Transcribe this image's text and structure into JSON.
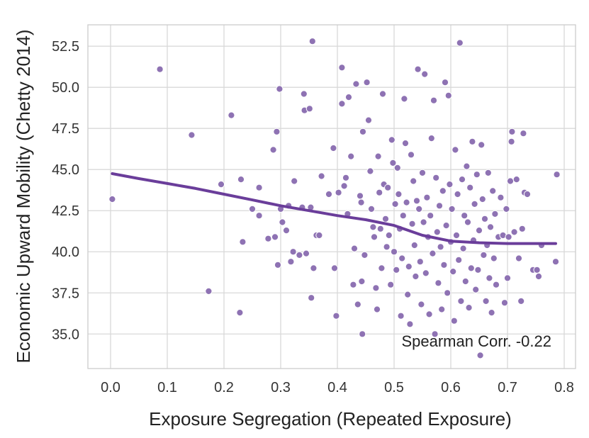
{
  "chart_data": {
    "type": "scatter",
    "title": "",
    "xlabel": "Exposure Segregation (Repeated Exposure)",
    "ylabel": "Economic Upward Mobility (Chetty 2014)",
    "xlim": [
      -0.04,
      0.82
    ],
    "ylim": [
      32.9,
      53.8
    ],
    "xticks": [
      "0.0",
      "0.1",
      "0.2",
      "0.3",
      "0.4",
      "0.5",
      "0.6",
      "0.7",
      "0.8"
    ],
    "xtick_values": [
      0.0,
      0.1,
      0.2,
      0.3,
      0.4,
      0.5,
      0.6,
      0.7,
      0.8
    ],
    "yticks": [
      "35.0",
      "37.5",
      "40.0",
      "42.5",
      "45.0",
      "47.5",
      "50.0",
      "52.5"
    ],
    "ytick_values": [
      35.0,
      37.5,
      40.0,
      42.5,
      45.0,
      47.5,
      50.0,
      52.5
    ],
    "grid": true,
    "annotation": "Spearman Corr. -0.22",
    "point_color": "#8e72b3",
    "line_color": "#6a3d9a",
    "series": [
      {
        "name": "counties",
        "points": [
          [
            0.003,
            43.2
          ],
          [
            0.087,
            51.1
          ],
          [
            0.143,
            47.1
          ],
          [
            0.173,
            37.6
          ],
          [
            0.195,
            44.1
          ],
          [
            0.213,
            48.3
          ],
          [
            0.228,
            36.3
          ],
          [
            0.23,
            44.4
          ],
          [
            0.233,
            40.6
          ],
          [
            0.25,
            42.6
          ],
          [
            0.262,
            43.9
          ],
          [
            0.262,
            42.2
          ],
          [
            0.278,
            40.8
          ],
          [
            0.287,
            46.2
          ],
          [
            0.29,
            40.9
          ],
          [
            0.293,
            47.3
          ],
          [
            0.295,
            39.2
          ],
          [
            0.298,
            49.9
          ],
          [
            0.3,
            42.6
          ],
          [
            0.303,
            41.8
          ],
          [
            0.31,
            41.3
          ],
          [
            0.314,
            42.8
          ],
          [
            0.318,
            39.4
          ],
          [
            0.322,
            40.0
          ],
          [
            0.324,
            44.3
          ],
          [
            0.333,
            39.8
          ],
          [
            0.338,
            42.7
          ],
          [
            0.341,
            49.6
          ],
          [
            0.342,
            48.6
          ],
          [
            0.345,
            39.9
          ],
          [
            0.351,
            48.7
          ],
          [
            0.353,
            42.7
          ],
          [
            0.354,
            37.2
          ],
          [
            0.356,
            52.8
          ],
          [
            0.358,
            39.0
          ],
          [
            0.363,
            41.0
          ],
          [
            0.368,
            41.0
          ],
          [
            0.372,
            44.6
          ],
          [
            0.385,
            43.5
          ],
          [
            0.393,
            46.3
          ],
          [
            0.395,
            39.0
          ],
          [
            0.398,
            36.1
          ],
          [
            0.402,
            43.6
          ],
          [
            0.408,
            51.2
          ],
          [
            0.408,
            49.0
          ],
          [
            0.412,
            44.0
          ],
          [
            0.415,
            44.5
          ],
          [
            0.418,
            42.3
          ],
          [
            0.42,
            49.4
          ],
          [
            0.424,
            45.8
          ],
          [
            0.428,
            38.0
          ],
          [
            0.43,
            40.2
          ],
          [
            0.433,
            50.2
          ],
          [
            0.436,
            36.8
          ],
          [
            0.44,
            43.4
          ],
          [
            0.442,
            43.0
          ],
          [
            0.443,
            38.2
          ],
          [
            0.444,
            35.0
          ],
          [
            0.445,
            47.3
          ],
          [
            0.448,
            39.8
          ],
          [
            0.452,
            50.3
          ],
          [
            0.455,
            48.0
          ],
          [
            0.458,
            44.9
          ],
          [
            0.46,
            42.6
          ],
          [
            0.463,
            41.5
          ],
          [
            0.465,
            40.9
          ],
          [
            0.468,
            37.8
          ],
          [
            0.47,
            36.5
          ],
          [
            0.472,
            45.8
          ],
          [
            0.474,
            43.6
          ],
          [
            0.476,
            41.4
          ],
          [
            0.478,
            39.0
          ],
          [
            0.48,
            49.6
          ],
          [
            0.482,
            44.1
          ],
          [
            0.485,
            42.0
          ],
          [
            0.487,
            40.3
          ],
          [
            0.489,
            43.9
          ],
          [
            0.491,
            41.0
          ],
          [
            0.494,
            38.0
          ],
          [
            0.496,
            46.8
          ],
          [
            0.498,
            45.4
          ],
          [
            0.5,
            40.0
          ],
          [
            0.502,
            42.9
          ],
          [
            0.504,
            38.9
          ],
          [
            0.506,
            45.1
          ],
          [
            0.508,
            43.5
          ],
          [
            0.51,
            41.4
          ],
          [
            0.512,
            36.1
          ],
          [
            0.514,
            39.6
          ],
          [
            0.516,
            42.2
          ],
          [
            0.518,
            49.3
          ],
          [
            0.52,
            46.6
          ],
          [
            0.522,
            43.0
          ],
          [
            0.524,
            37.4
          ],
          [
            0.526,
            39.1
          ],
          [
            0.528,
            35.6
          ],
          [
            0.53,
            45.9
          ],
          [
            0.532,
            41.7
          ],
          [
            0.534,
            44.3
          ],
          [
            0.536,
            40.4
          ],
          [
            0.538,
            38.5
          ],
          [
            0.54,
            43.1
          ],
          [
            0.542,
            51.1
          ],
          [
            0.544,
            42.6
          ],
          [
            0.546,
            39.4
          ],
          [
            0.548,
            36.8
          ],
          [
            0.55,
            44.8
          ],
          [
            0.552,
            41.8
          ],
          [
            0.554,
            50.8
          ],
          [
            0.556,
            38.7
          ],
          [
            0.558,
            43.3
          ],
          [
            0.56,
            40.9
          ],
          [
            0.562,
            36.2
          ],
          [
            0.564,
            42.2
          ],
          [
            0.566,
            46.9
          ],
          [
            0.568,
            39.9
          ],
          [
            0.57,
            49.2
          ],
          [
            0.572,
            35.0
          ],
          [
            0.574,
            44.5
          ],
          [
            0.576,
            41.2
          ],
          [
            0.578,
            38.1
          ],
          [
            0.58,
            42.8
          ],
          [
            0.582,
            40.3
          ],
          [
            0.584,
            36.5
          ],
          [
            0.586,
            43.7
          ],
          [
            0.588,
            39.2
          ],
          [
            0.59,
            50.3
          ],
          [
            0.592,
            41.6
          ],
          [
            0.594,
            37.5
          ],
          [
            0.596,
            49.5
          ],
          [
            0.598,
            44.1
          ],
          [
            0.6,
            40.6
          ],
          [
            0.602,
            42.6
          ],
          [
            0.604,
            38.8
          ],
          [
            0.606,
            35.8
          ],
          [
            0.608,
            46.2
          ],
          [
            0.61,
            41.0
          ],
          [
            0.612,
            43.5
          ],
          [
            0.614,
            39.5
          ],
          [
            0.616,
            52.7
          ],
          [
            0.618,
            37.0
          ],
          [
            0.62,
            44.4
          ],
          [
            0.622,
            40.2
          ],
          [
            0.624,
            42.2
          ],
          [
            0.626,
            38.2
          ],
          [
            0.628,
            45.2
          ],
          [
            0.63,
            41.8
          ],
          [
            0.632,
            36.6
          ],
          [
            0.634,
            43.9
          ],
          [
            0.636,
            39.0
          ],
          [
            0.638,
            46.7
          ],
          [
            0.64,
            40.7
          ],
          [
            0.642,
            42.9
          ],
          [
            0.644,
            37.7
          ],
          [
            0.646,
            44.7
          ],
          [
            0.648,
            38.9
          ],
          [
            0.65,
            41.3
          ],
          [
            0.652,
            33.7
          ],
          [
            0.654,
            46.5
          ],
          [
            0.656,
            43.2
          ],
          [
            0.658,
            39.8
          ],
          [
            0.66,
            42.0
          ],
          [
            0.662,
            37.0
          ],
          [
            0.664,
            40.4
          ],
          [
            0.666,
            44.8
          ],
          [
            0.668,
            38.4
          ],
          [
            0.67,
            41.5
          ],
          [
            0.672,
            36.3
          ],
          [
            0.674,
            43.7
          ],
          [
            0.676,
            39.6
          ],
          [
            0.678,
            42.3
          ],
          [
            0.68,
            38.0
          ],
          [
            0.684,
            40.9
          ],
          [
            0.688,
            43.3
          ],
          [
            0.692,
            41.0
          ],
          [
            0.695,
            36.9
          ],
          [
            0.698,
            42.6
          ],
          [
            0.7,
            38.4
          ],
          [
            0.702,
            40.9
          ],
          [
            0.705,
            44.3
          ],
          [
            0.707,
            46.7
          ],
          [
            0.708,
            47.3
          ],
          [
            0.712,
            41.2
          ],
          [
            0.716,
            44.4
          ],
          [
            0.72,
            39.6
          ],
          [
            0.724,
            37.0
          ],
          [
            0.726,
            41.4
          ],
          [
            0.728,
            47.2
          ],
          [
            0.73,
            43.6
          ],
          [
            0.735,
            43.5
          ],
          [
            0.745,
            38.9
          ],
          [
            0.752,
            38.9
          ],
          [
            0.755,
            38.5
          ],
          [
            0.76,
            40.4
          ],
          [
            0.785,
            39.4
          ],
          [
            0.787,
            44.7
          ]
        ]
      }
    ],
    "trend_line": {
      "x": [
        0.003,
        0.05,
        0.1,
        0.15,
        0.2,
        0.25,
        0.3,
        0.35,
        0.4,
        0.45,
        0.5,
        0.55,
        0.6,
        0.65,
        0.7,
        0.75,
        0.785
      ],
      "y": [
        44.75,
        44.45,
        44.15,
        43.85,
        43.5,
        43.15,
        42.8,
        42.5,
        42.2,
        41.95,
        41.6,
        41.0,
        40.65,
        40.55,
        40.5,
        40.5,
        40.5
      ]
    }
  }
}
